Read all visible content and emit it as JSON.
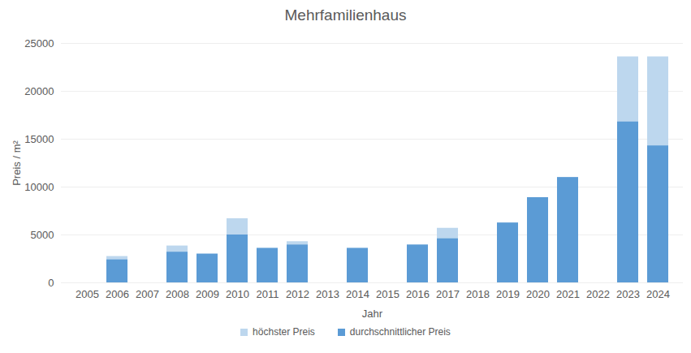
{
  "chart_data": {
    "type": "bar",
    "title": "Mehrfamilienhaus",
    "x_label": "Jahr",
    "y_label": "Preis / m²",
    "categories": [
      "2005",
      "2006",
      "2007",
      "2008",
      "2009",
      "2010",
      "2011",
      "2012",
      "2013",
      "2014",
      "2015",
      "2016",
      "2017",
      "2018",
      "2019",
      "2020",
      "2021",
      "2022",
      "2023",
      "2024"
    ],
    "series": [
      {
        "name": "höchster Preis",
        "color": "#bdd7ee",
        "values": [
          null,
          2750,
          null,
          3850,
          3000,
          6700,
          3600,
          4300,
          null,
          3600,
          null,
          3950,
          5700,
          null,
          6250,
          8900,
          11000,
          null,
          23600,
          23600
        ]
      },
      {
        "name": "durchschnittlicher Preis",
        "color": "#5b9bd5",
        "values": [
          null,
          2400,
          null,
          3200,
          3000,
          5000,
          3600,
          3950,
          null,
          3600,
          null,
          3950,
          4600,
          null,
          6250,
          8900,
          11000,
          null,
          16800,
          14300
        ]
      }
    ],
    "stacked": false,
    "ylim": [
      0,
      25000
    ],
    "yticks": [
      0,
      5000,
      10000,
      15000,
      20000,
      25000
    ],
    "grid": true,
    "legend": "bottom"
  }
}
